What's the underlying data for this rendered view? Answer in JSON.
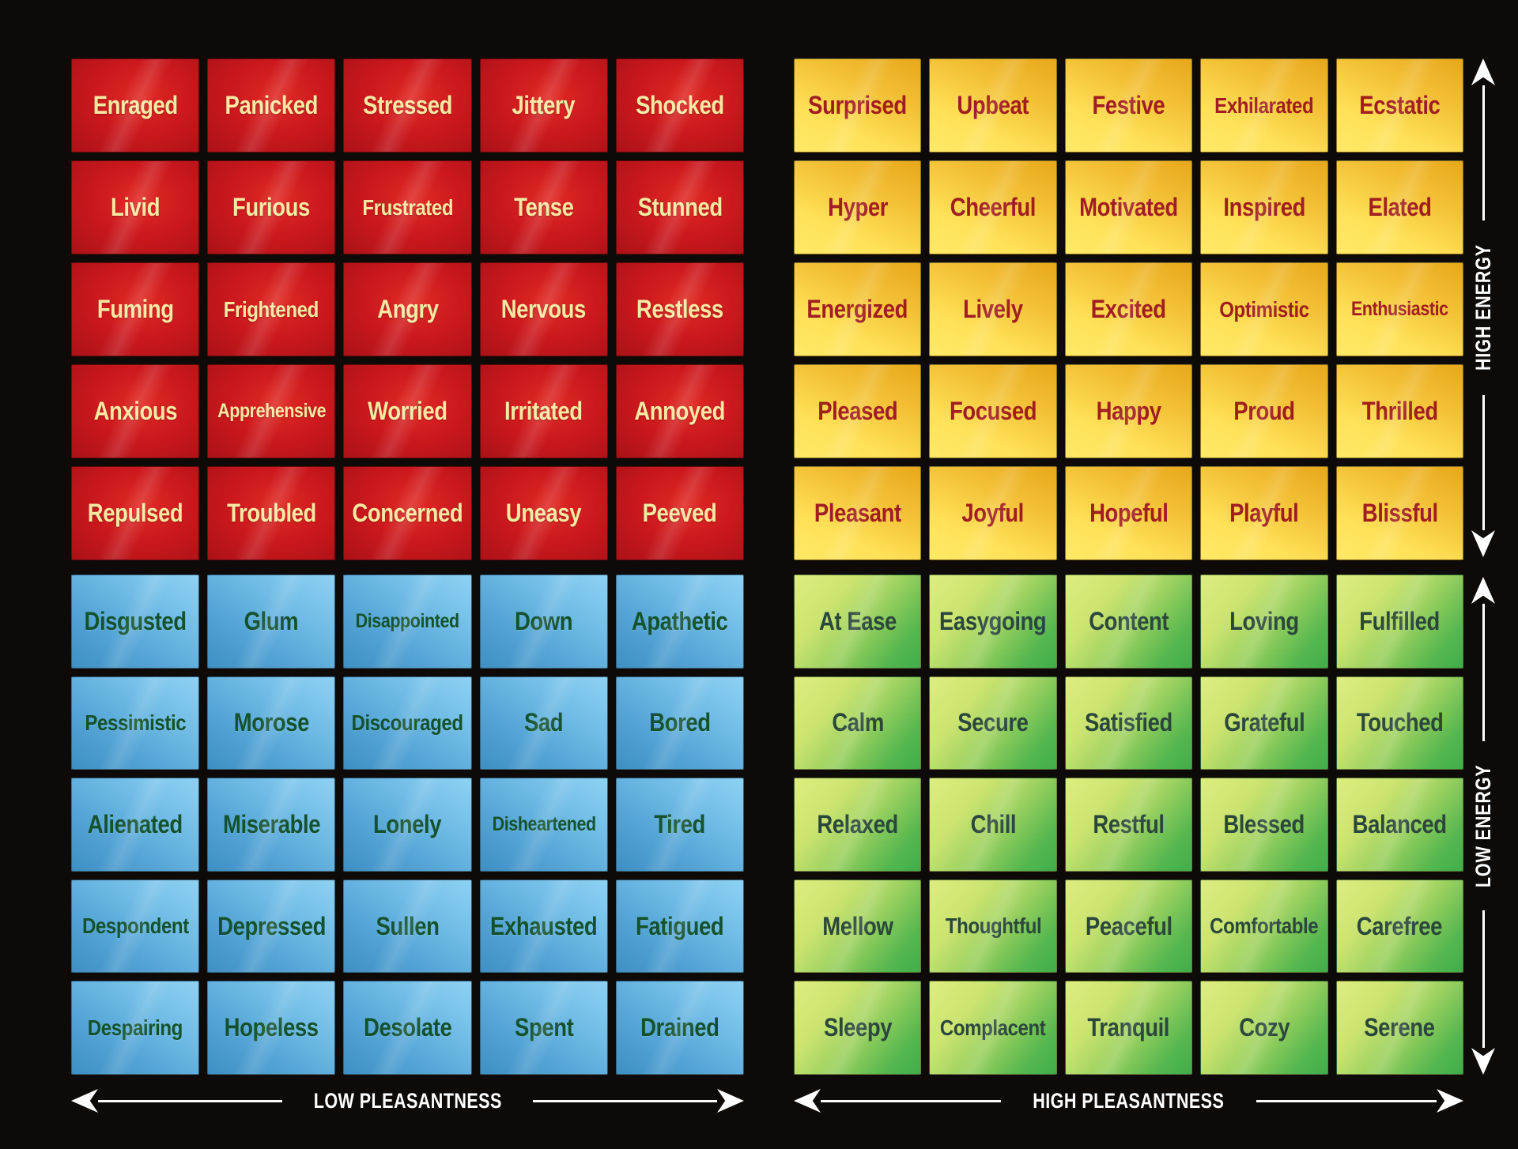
{
  "axes": {
    "energy_high": "HIGH ENERGY",
    "energy_low": "LOW ENERGY",
    "pleasantness_low": "LOW PLEASANTNESS",
    "pleasantness_high": "HIGH PLEASANTNESS"
  },
  "colors": {
    "background": "#0d0a08",
    "axis": "#ffffff",
    "red_cell": "#cb181d",
    "yellow_cell": "#f9cf3d",
    "blue_cell": "#5fb1de",
    "green_cell": "#8cc95a",
    "red_text": "#f7e9a3",
    "yellow_text": "#a01d21",
    "blue_text": "#14522e",
    "green_text": "#2b473c"
  },
  "quadrants": {
    "red": {
      "position": "top-left",
      "energy": "high",
      "pleasantness": "low",
      "text_color": "#f7e9a3",
      "rows": [
        [
          "Enraged",
          "Panicked",
          "Stressed",
          "Jittery",
          "Shocked"
        ],
        [
          "Livid",
          "Furious",
          "Frustrated",
          "Tense",
          "Stunned"
        ],
        [
          "Fuming",
          "Frightened",
          "Angry",
          "Nervous",
          "Restless"
        ],
        [
          "Anxious",
          "Apprehensive",
          "Worried",
          "Irritated",
          "Annoyed"
        ],
        [
          "Repulsed",
          "Troubled",
          "Concerned",
          "Uneasy",
          "Peeved"
        ]
      ]
    },
    "yellow": {
      "position": "top-right",
      "energy": "high",
      "pleasantness": "high",
      "text_color": "#a01d21",
      "rows": [
        [
          "Surprised",
          "Upbeat",
          "Festive",
          "Exhilarated",
          "Ecstatic"
        ],
        [
          "Hyper",
          "Cheerful",
          "Motivated",
          "Inspired",
          "Elated"
        ],
        [
          "Energized",
          "Lively",
          "Excited",
          "Optimistic",
          "Enthusiastic"
        ],
        [
          "Pleased",
          "Focused",
          "Happy",
          "Proud",
          "Thrilled"
        ],
        [
          "Pleasant",
          "Joyful",
          "Hopeful",
          "Playful",
          "Blissful"
        ]
      ]
    },
    "blue": {
      "position": "bottom-left",
      "energy": "low",
      "pleasantness": "low",
      "text_color": "#14522e",
      "rows": [
        [
          "Disgusted",
          "Glum",
          "Disappointed",
          "Down",
          "Apathetic"
        ],
        [
          "Pessimistic",
          "Morose",
          "Discouraged",
          "Sad",
          "Bored"
        ],
        [
          "Alienated",
          "Miserable",
          "Lonely",
          "Disheartened",
          "Tired"
        ],
        [
          "Despondent",
          "Depressed",
          "Sullen",
          "Exhausted",
          "Fatigued"
        ],
        [
          "Despairing",
          "Hopeless",
          "Desolate",
          "Spent",
          "Drained"
        ]
      ]
    },
    "green": {
      "position": "bottom-right",
      "energy": "low",
      "pleasantness": "high",
      "text_color": "#2b473c",
      "rows": [
        [
          "At Ease",
          "Easygoing",
          "Content",
          "Loving",
          "Fulfilled"
        ],
        [
          "Calm",
          "Secure",
          "Satisfied",
          "Grateful",
          "Touched"
        ],
        [
          "Relaxed",
          "Chill",
          "Restful",
          "Blessed",
          "Balanced"
        ],
        [
          "Mellow",
          "Thoughtful",
          "Peaceful",
          "Comfortable",
          "Carefree"
        ],
        [
          "Sleepy",
          "Complacent",
          "Tranquil",
          "Cozy",
          "Serene"
        ]
      ]
    }
  }
}
